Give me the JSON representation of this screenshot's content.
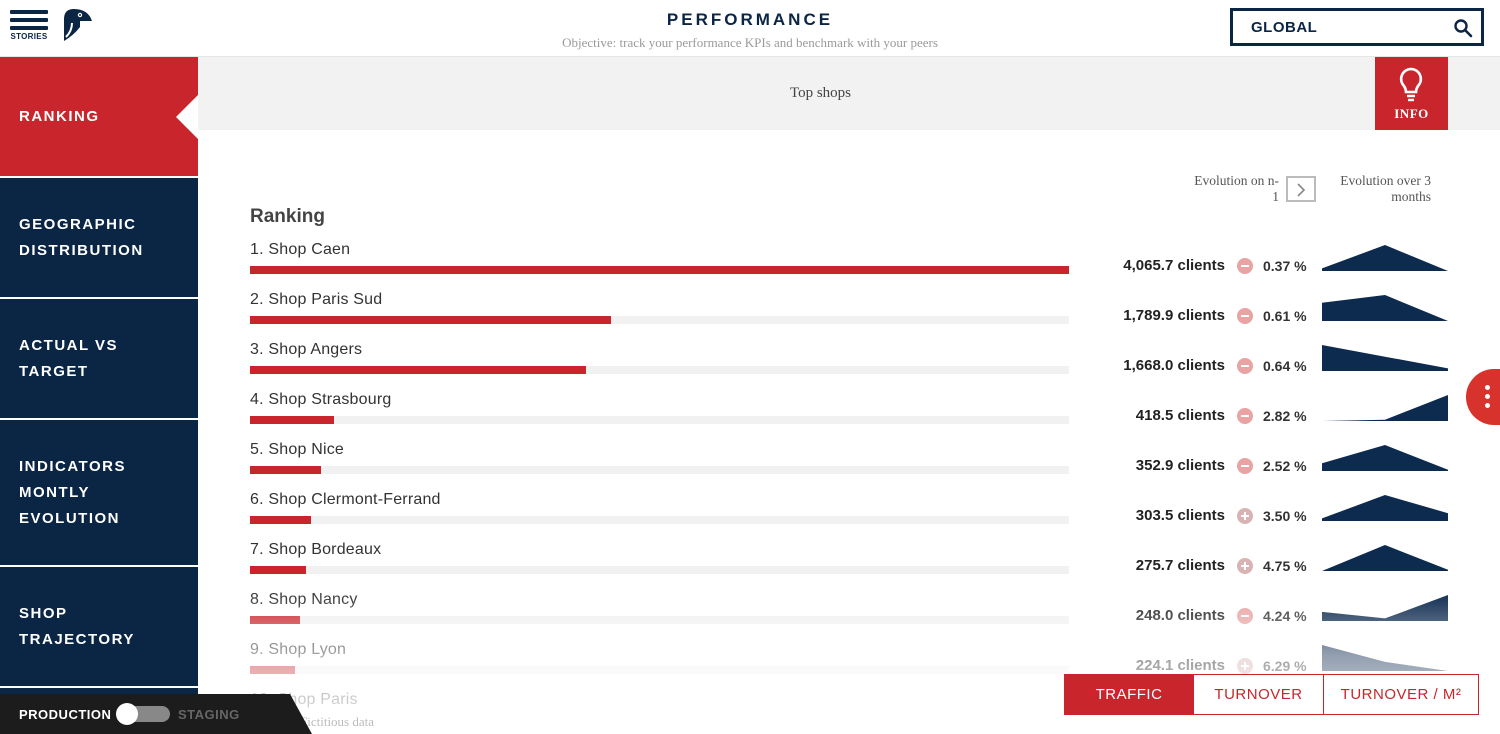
{
  "header": {
    "menu_label": "STORIES",
    "title": "PERFORMANCE",
    "subtitle": "Objective: track your performance KPIs and benchmark with your peers",
    "search_value": "GLOBAL"
  },
  "sidebar": {
    "items": [
      {
        "label": "RANKING",
        "active": true
      },
      {
        "label": "GEOGRAPHIC DISTRIBUTION",
        "active": false
      },
      {
        "label": "ACTUAL VS TARGET",
        "active": false
      },
      {
        "label": "INDICATORS MONTLY EVOLUTION",
        "active": false
      },
      {
        "label": "SHOP TRAJECTORY",
        "active": false
      }
    ]
  },
  "banner": {
    "label": "Top shops",
    "info_label": "INFO"
  },
  "columns": {
    "evolution_n1": "Evolution on n-1",
    "evolution_3m": "Evolution over 3 months"
  },
  "ranking": {
    "title": "Ranking",
    "max_value": 4065.7,
    "rows": [
      {
        "name": "1. Shop Caen",
        "value": 4065.7,
        "value_label": "4,065.7 clients",
        "trend": "minus",
        "pct": "0.37 %",
        "spark": [
          0.1,
          1.0,
          0.0
        ]
      },
      {
        "name": "2. Shop Paris Sud",
        "value": 1789.9,
        "value_label": "1,789.9 clients",
        "trend": "minus",
        "pct": "0.61 %",
        "spark": [
          0.7,
          1.0,
          0.0
        ]
      },
      {
        "name": "3. Shop Angers",
        "value": 1668.0,
        "value_label": "1,668.0 clients",
        "trend": "minus",
        "pct": "0.64 %",
        "spark": [
          1.0,
          0.55,
          0.1
        ]
      },
      {
        "name": "4. Shop Strasbourg",
        "value": 418.5,
        "value_label": "418.5 clients",
        "trend": "minus",
        "pct": "2.82 %",
        "spark": [
          0.0,
          0.05,
          1.0
        ]
      },
      {
        "name": "5. Shop Nice",
        "value": 352.9,
        "value_label": "352.9 clients",
        "trend": "minus",
        "pct": "2.52 %",
        "spark": [
          0.3,
          1.0,
          0.05
        ]
      },
      {
        "name": "6. Shop Clermont-Ferrand",
        "value": 303.5,
        "value_label": "303.5 clients",
        "trend": "plus",
        "pct": "3.50 %",
        "spark": [
          0.1,
          1.0,
          0.3
        ]
      },
      {
        "name": "7. Shop Bordeaux",
        "value": 275.7,
        "value_label": "275.7 clients",
        "trend": "plus",
        "pct": "4.75 %",
        "spark": [
          0.0,
          1.0,
          0.05
        ]
      },
      {
        "name": "8. Shop Nancy",
        "value": 248.0,
        "value_label": "248.0 clients",
        "trend": "minus",
        "pct": "4.24 %",
        "spark": [
          0.35,
          0.1,
          1.0
        ]
      },
      {
        "name": "9. Shop Lyon",
        "value": 224.1,
        "value_label": "224.1 clients",
        "trend": "plus",
        "pct": "6.29 %",
        "spark": [
          1.0,
          0.35,
          0.0
        ]
      },
      {
        "name": "10. Shop Paris",
        "value": 0,
        "value_label": "",
        "trend": "",
        "pct": "",
        "spark": []
      }
    ],
    "footnote": "Fictitious data"
  },
  "metrics": {
    "buttons": [
      {
        "label": "TRAFFIC",
        "active": true
      },
      {
        "label": "TURNOVER",
        "active": false
      },
      {
        "label": "TURNOVER / M²",
        "active": false
      }
    ]
  },
  "environment": {
    "production_label": "PRODUCTION",
    "staging_label": "STAGING"
  },
  "colors": {
    "navy": "#0b2545",
    "red": "#c8262c",
    "spark": "#0d2a4f"
  },
  "icons": {
    "menu": "hamburger-icon",
    "logo": "toucan-logo",
    "search": "search-icon",
    "info": "lightbulb-icon",
    "toggle": "chevron-right-icon",
    "more": "more-vertical-icon"
  }
}
